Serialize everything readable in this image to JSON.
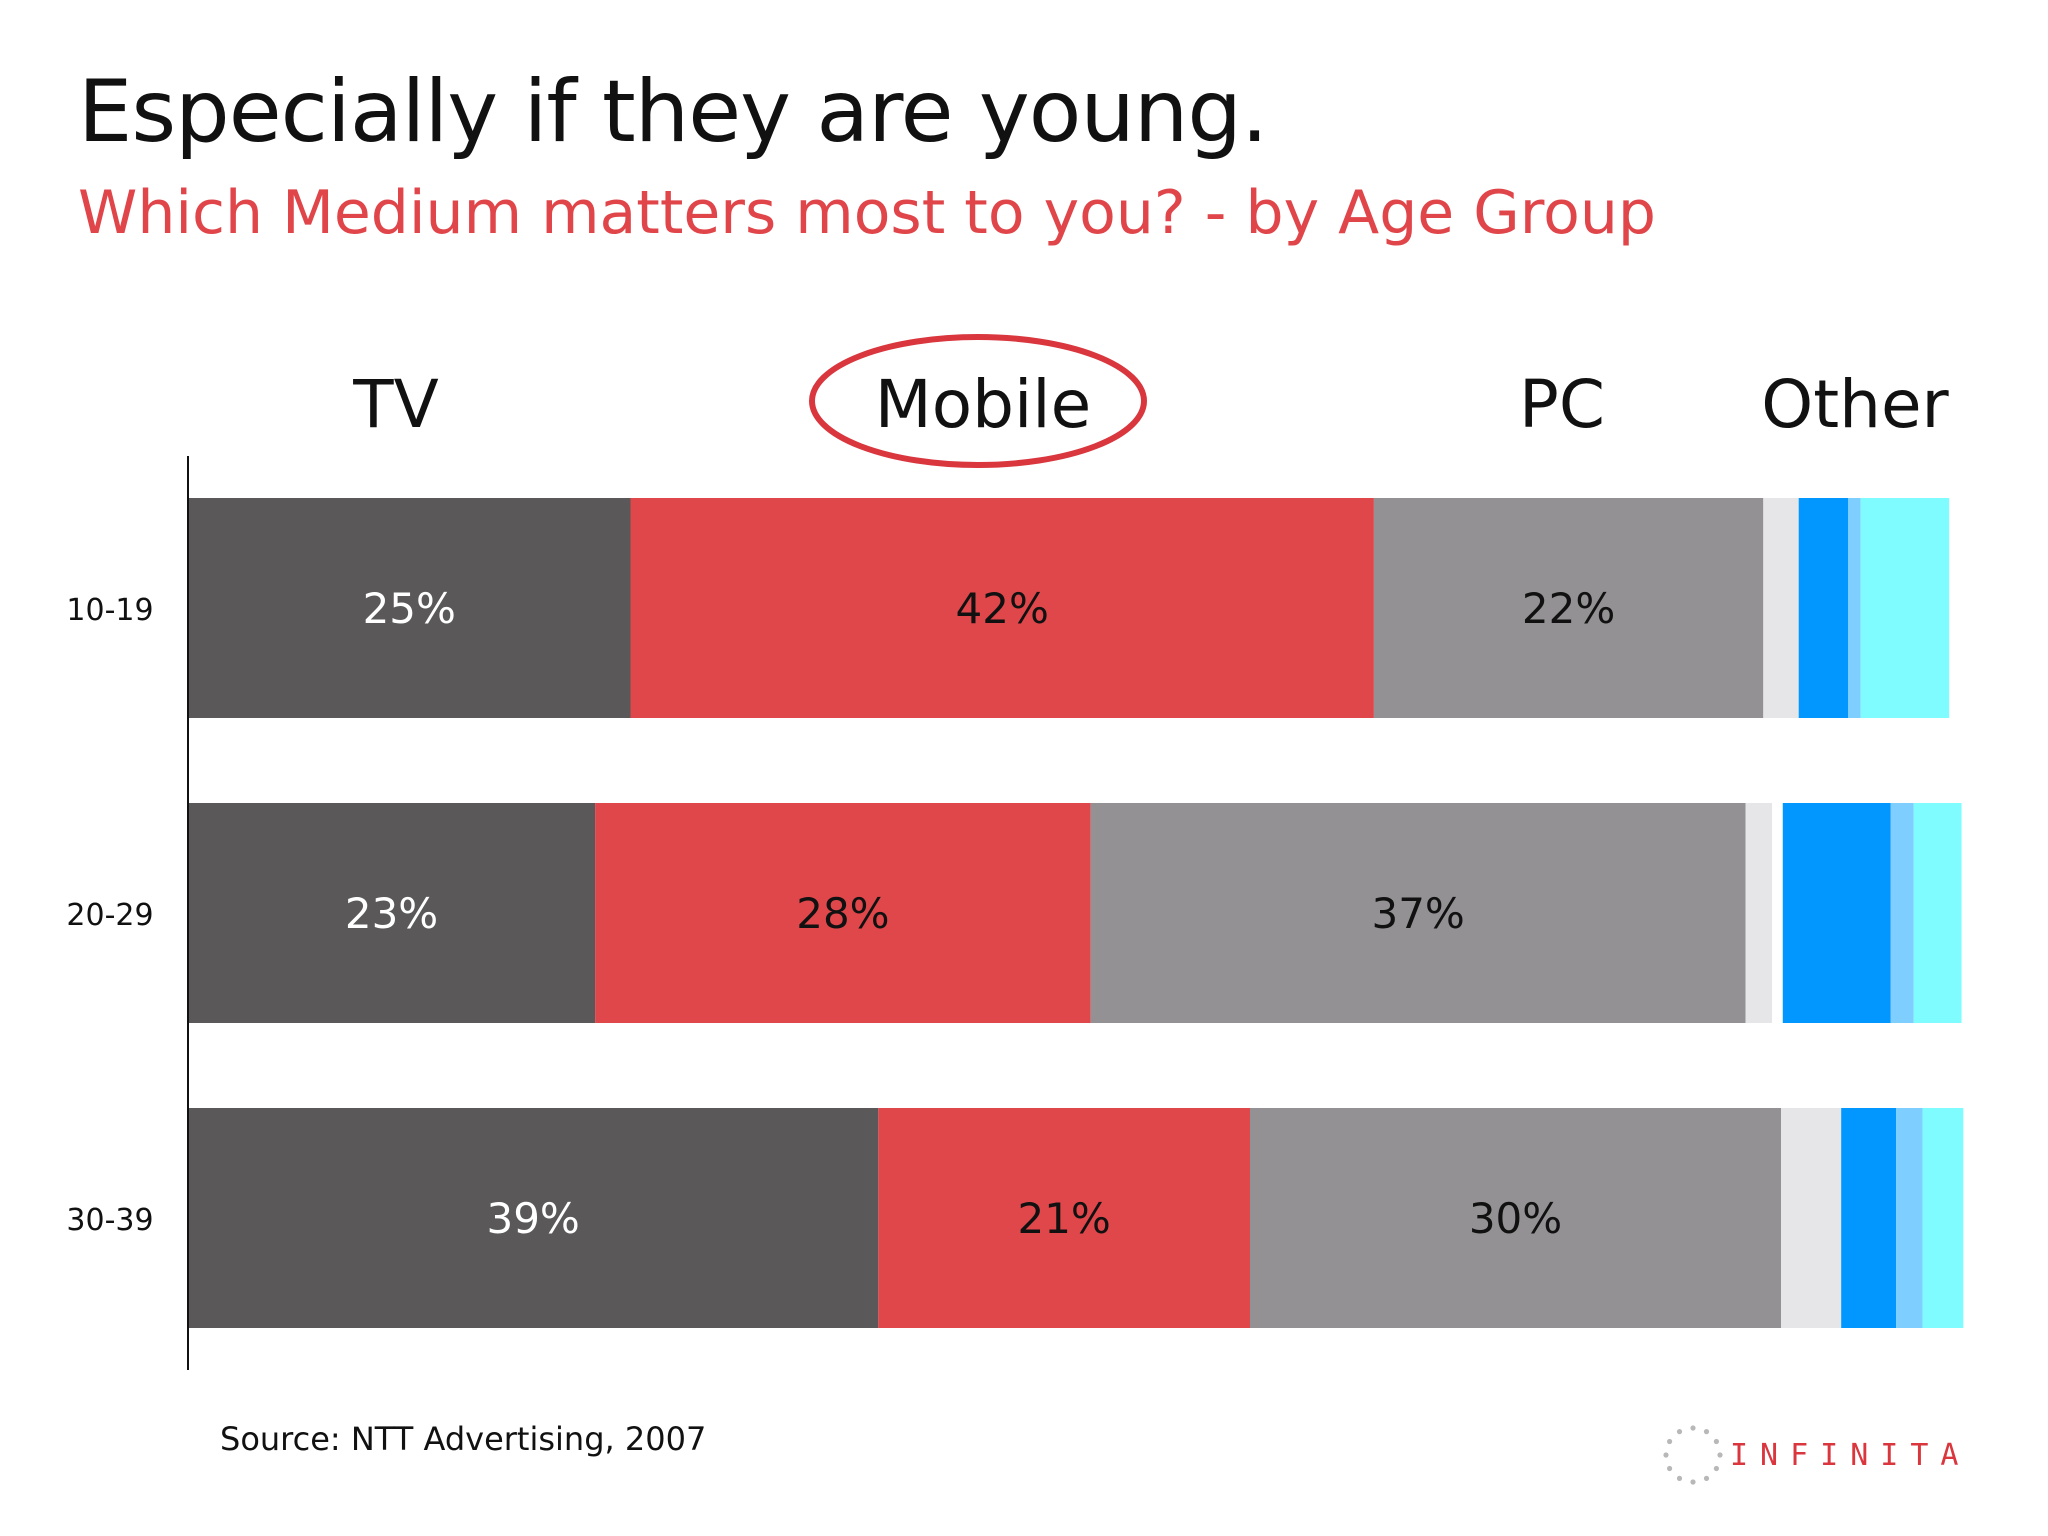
{
  "slide": {
    "title": "Especially if they are young.",
    "subtitle": "Which Medium matters most to you? - by Age Group",
    "source": "Source: NTT Advertising, 2007",
    "logo_text": "INFINITA"
  },
  "chart_data": {
    "type": "bar",
    "orientation": "horizontal",
    "stacked": true,
    "title": "Which Medium matters most to you? - by Age Group",
    "categories": [
      "10-19",
      "20-29",
      "30-39"
    ],
    "series": [
      {
        "name": "TV",
        "values": [
          25,
          23,
          39
        ],
        "color": "#5a5859",
        "label_color": "#ffffff"
      },
      {
        "name": "Mobile",
        "values": [
          42,
          28,
          21
        ],
        "color": "#e0474b",
        "label_color": "#111111"
      },
      {
        "name": "PC",
        "values": [
          22,
          37,
          30
        ],
        "color": "#939193",
        "label_color": "#111111"
      },
      {
        "name": "",
        "values": [
          2,
          1.5,
          3.4
        ],
        "color": "#e6e5e8",
        "label_color": ""
      },
      {
        "name": "",
        "values": [
          0,
          0.6,
          0
        ],
        "color": "#ffffff",
        "label_color": ""
      },
      {
        "name": "",
        "values": [
          2.8,
          6.1,
          3.1
        ],
        "color": "#0296ff",
        "label_color": ""
      },
      {
        "name": "",
        "values": [
          0.7,
          1.3,
          1.5
        ],
        "color": "#7ecfff",
        "label_color": ""
      },
      {
        "name": "",
        "values": [
          5,
          2.7,
          2.3
        ],
        "color": "#7efcff",
        "label_color": ""
      }
    ],
    "column_headers": [
      "TV",
      "Mobile",
      "PC",
      "Other"
    ],
    "data_labels": [
      [
        "25%",
        "42%",
        "22%"
      ],
      [
        "23%",
        "28%",
        "37%"
      ],
      [
        "39%",
        "21%",
        "30%"
      ]
    ],
    "highlight": "Mobile",
    "highlight_color": "#d9363e",
    "axis_color": "#111111",
    "xlim": [
      0,
      100
    ],
    "grid": false,
    "legend": "top"
  }
}
